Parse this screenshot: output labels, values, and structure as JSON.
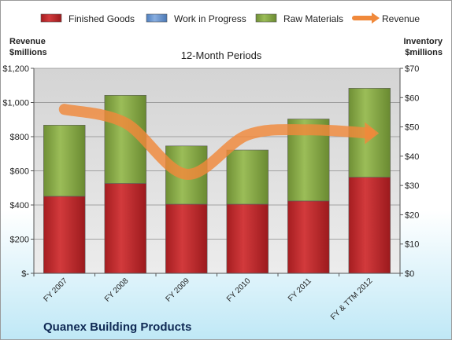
{
  "chart_data": {
    "type": "bar",
    "title": "12-Month Periods",
    "company": "Quanex Building Products",
    "categories": [
      "FY 2007",
      "FY 2008",
      "FY 2009",
      "FY 2010",
      "FY 2011",
      "FY & TTM 2012"
    ],
    "stacked": true,
    "left_axis": {
      "label_line1": "Revenue",
      "label_line2": "$millions",
      "ylim": [
        0,
        1200
      ],
      "ticks": [
        0,
        200,
        400,
        600,
        800,
        1000,
        1200
      ],
      "tick_labels": [
        "$-",
        "$200",
        "$400",
        "$600",
        "$800",
        "$1,000",
        "$1,200"
      ]
    },
    "right_axis": {
      "label_line1": "Inventory",
      "label_line2": "$millions",
      "ylim": [
        0,
        70
      ],
      "ticks": [
        0,
        10,
        20,
        30,
        40,
        50,
        60,
        70
      ],
      "tick_labels": [
        "$0",
        "$10",
        "$20",
        "$30",
        "$40",
        "$50",
        "$60",
        "$70"
      ]
    },
    "series": [
      {
        "name": "Finished Goods",
        "type": "bar",
        "axis": "right",
        "color": "#c0292c",
        "values": [
          26.3,
          30.7,
          23.6,
          23.6,
          24.7,
          32.8
        ]
      },
      {
        "name": "Work in Progress",
        "type": "bar",
        "axis": "right",
        "color": "#6f9ad1",
        "values": [
          0,
          0,
          0,
          0,
          0,
          0
        ]
      },
      {
        "name": "Raw Materials",
        "type": "bar",
        "axis": "right",
        "color": "#8fb04b",
        "values": [
          24.3,
          30.1,
          19.9,
          18.5,
          28.0,
          30.4
        ]
      },
      {
        "name": "Revenue",
        "type": "line",
        "axis": "left",
        "color": "#f0893b",
        "values": [
          960,
          880,
          580,
          810,
          840,
          820
        ]
      }
    ],
    "legend_position": "top",
    "grid": true
  }
}
